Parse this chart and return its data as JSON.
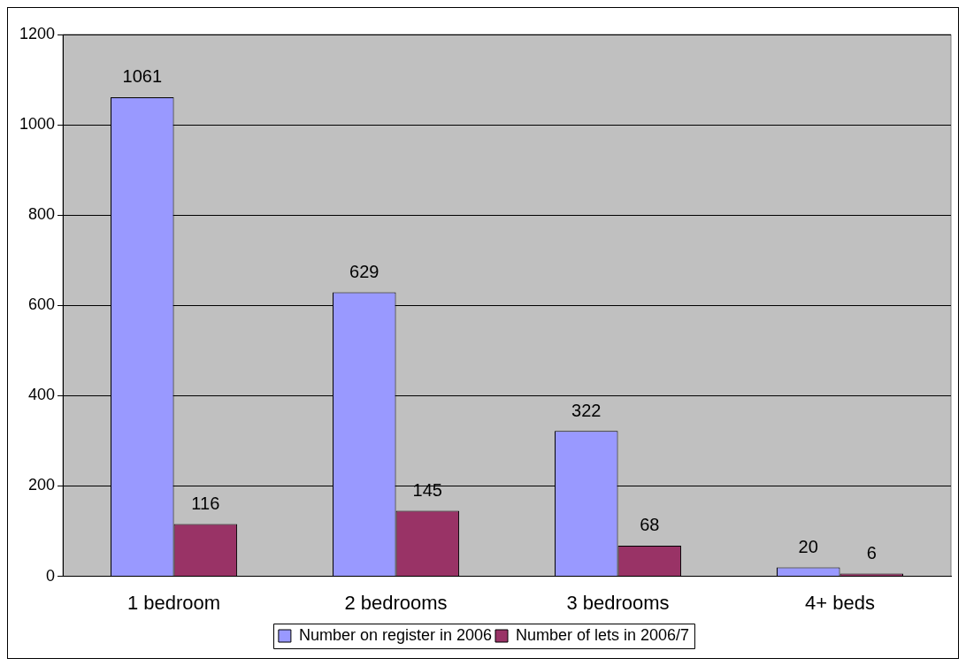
{
  "chart_data": {
    "type": "bar",
    "categories": [
      "1 bedroom",
      "2 bedrooms",
      "3 bedrooms",
      "4+ beds"
    ],
    "series": [
      {
        "name": "Number on register in 2006",
        "color": "#9999ff",
        "values": [
          1061,
          629,
          322,
          20
        ]
      },
      {
        "name": "Number of lets in 2006/7",
        "color": "#993366",
        "values": [
          116,
          145,
          68,
          6
        ]
      }
    ],
    "ylim": [
      0,
      1200
    ],
    "yticks": [
      0,
      200,
      400,
      600,
      800,
      1000,
      1200
    ],
    "grid": "y",
    "legend": "bottom",
    "data_labels": true
  }
}
